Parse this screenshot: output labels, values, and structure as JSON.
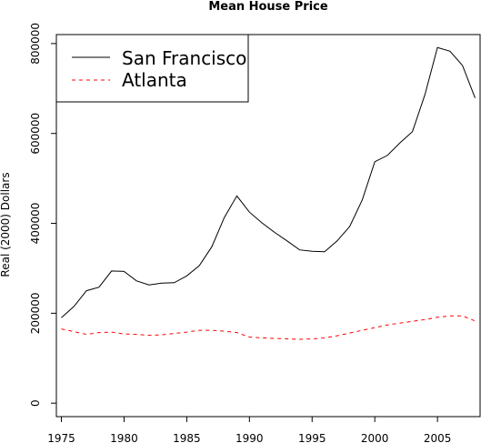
{
  "chart_data": {
    "type": "line",
    "title": "Mean House Price",
    "xlabel": "",
    "ylabel": "Real (2000) Dollars",
    "xlim": [
      1974.6,
      2008.4
    ],
    "ylim": [
      -30000,
      820000
    ],
    "xticks": [
      1975,
      1980,
      1985,
      1990,
      1995,
      2000,
      2005
    ],
    "yticks": [
      0,
      200000,
      400000,
      600000,
      800000
    ],
    "x": [
      1975,
      1976,
      1977,
      1978,
      1979,
      1980,
      1981,
      1982,
      1983,
      1984,
      1985,
      1986,
      1987,
      1988,
      1989,
      1990,
      1991,
      1992,
      1993,
      1994,
      1995,
      1996,
      1997,
      1998,
      1999,
      2000,
      2001,
      2002,
      2003,
      2004,
      2005,
      2006,
      2007,
      2008
    ],
    "series": [
      {
        "name": "San Francisco",
        "color": "#000000",
        "dash": "solid",
        "values": [
          190000,
          215000,
          250000,
          258000,
          294000,
          293000,
          272000,
          263000,
          267000,
          268000,
          283000,
          306000,
          348000,
          413000,
          461000,
          425000,
          401000,
          380000,
          361000,
          341000,
          338000,
          337000,
          361000,
          393000,
          452000,
          537000,
          551000,
          579000,
          604000,
          686000,
          791000,
          783000,
          751000,
          679000
        ]
      },
      {
        "name": "Atlanta",
        "color": "#ff0000",
        "dash": "dashed",
        "values": [
          165000,
          159000,
          153000,
          157000,
          158000,
          154000,
          153000,
          151000,
          152000,
          155000,
          158000,
          162000,
          162000,
          160000,
          157000,
          147000,
          145000,
          144000,
          143000,
          142000,
          143000,
          145000,
          150000,
          156000,
          162000,
          168000,
          174000,
          178000,
          182000,
          186000,
          191000,
          194000,
          194000,
          183000
        ]
      }
    ],
    "legend_position": "top-left",
    "grid": false
  }
}
